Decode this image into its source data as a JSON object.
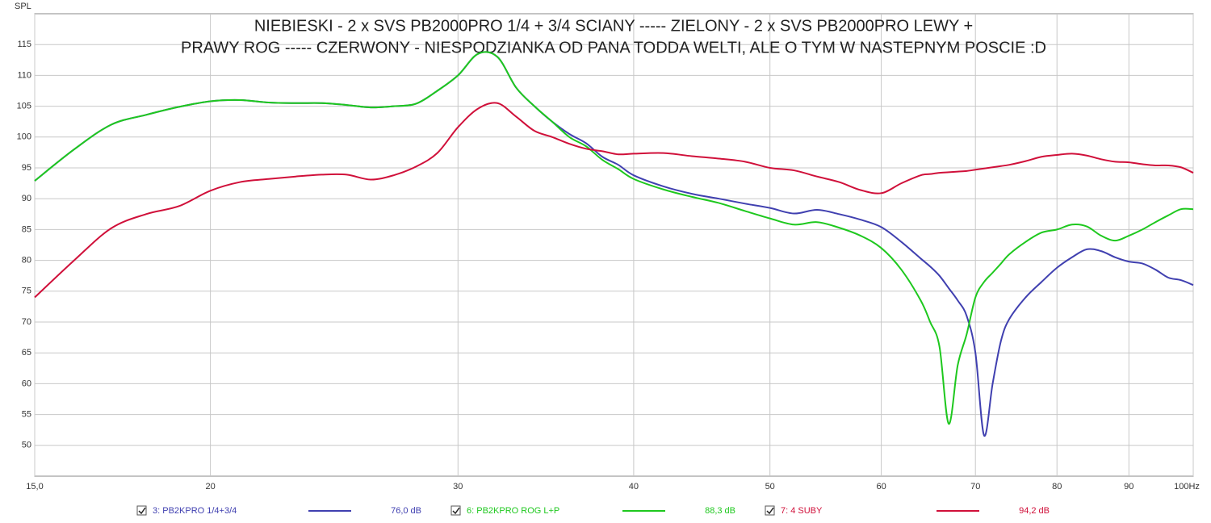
{
  "chart_data": {
    "type": "line",
    "title": [
      "NIEBIESKI - 2 x SVS PB2000PRO 1/4 + 3/4 SCIANY ----- ZIELONY - 2 x SVS PB2000PRO LEWY +",
      "PRAWY ROG ----- CZERWONY - NIESPODZIANKA OD PANA TODDA WELTI, ALE O TYM W NASTEPNYM POSCIE :D"
    ],
    "y_label": "SPL",
    "log_x": true,
    "grid": true,
    "xlim": [
      15,
      100
    ],
    "ylim": [
      45,
      120
    ],
    "xticks": [
      {
        "value": 15,
        "label": "15,0"
      },
      20,
      30,
      40,
      50,
      60,
      70,
      80,
      90,
      {
        "value": 100,
        "label": "100Hz"
      }
    ],
    "yticks": [
      50,
      55,
      60,
      65,
      70,
      75,
      80,
      85,
      90,
      95,
      100,
      105,
      110,
      115
    ],
    "x": [
      15,
      16,
      17,
      18,
      19,
      20,
      21,
      22,
      23,
      24,
      25,
      26,
      27,
      28,
      29,
      30,
      31,
      32,
      33,
      34,
      35,
      36,
      37,
      38,
      39,
      40,
      42,
      44,
      46,
      48,
      50,
      52,
      54,
      56,
      58,
      60,
      62,
      64,
      65,
      66,
      67,
      68,
      69,
      70,
      71,
      72,
      73,
      74,
      76,
      78,
      80,
      82,
      84,
      86,
      88,
      90,
      92,
      94,
      96,
      98,
      100
    ],
    "series": [
      {
        "name": "3: PB2KPRO 1/4+3/4",
        "color": "#4040b0",
        "legend_value": "76,0 dB",
        "values": [
          92.9,
          98,
          102,
          103.6,
          104.9,
          105.8,
          106,
          105.6,
          105.5,
          105.5,
          105.2,
          104.8,
          105,
          105.4,
          107.5,
          110,
          113.5,
          113,
          108,
          105,
          102.5,
          100.5,
          99,
          96.8,
          95.5,
          93.8,
          92,
          90.8,
          90,
          89.2,
          88.5,
          87.6,
          88.2,
          87.5,
          86.6,
          85.4,
          83,
          80.3,
          79,
          77.5,
          75.5,
          73.5,
          71,
          65,
          51.6,
          60,
          67,
          70.5,
          74,
          76.5,
          78.8,
          80.5,
          81.8,
          81.5,
          80.5,
          79.8,
          79.5,
          78.5,
          77.2,
          76.8,
          76
        ]
      },
      {
        "name": "6: PB2KPRO ROG L+P",
        "color": "#1ec81e",
        "legend_value": "88,3 dB",
        "values": [
          92.9,
          98,
          102,
          103.6,
          104.9,
          105.8,
          106,
          105.6,
          105.5,
          105.5,
          105.2,
          104.8,
          105,
          105.4,
          107.5,
          110,
          113.5,
          113,
          108,
          105,
          102.5,
          100,
          98.5,
          96.3,
          94.8,
          93.2,
          91.5,
          90.3,
          89.3,
          88,
          86.8,
          85.8,
          86.2,
          85.3,
          84,
          82,
          78.5,
          73.5,
          70,
          66,
          53.5,
          63,
          68,
          74,
          76.5,
          78,
          79.5,
          81,
          83,
          84.5,
          85,
          85.8,
          85.5,
          84,
          83.2,
          84,
          85,
          86.2,
          87.3,
          88.3,
          88.3
        ]
      },
      {
        "name": "7: 4 SUBY",
        "color": "#d0103a",
        "legend_value": "94,2 dB",
        "values": [
          74,
          80,
          85.2,
          87.5,
          88.8,
          91.3,
          92.7,
          93.2,
          93.6,
          93.9,
          93.9,
          93.1,
          93.8,
          95.2,
          97.4,
          101.6,
          104.6,
          105.5,
          103.3,
          101,
          100,
          98.9,
          98.1,
          97.7,
          97.2,
          97.3,
          97.4,
          96.9,
          96.5,
          96,
          95,
          94.6,
          93.6,
          92.7,
          91.4,
          90.9,
          92.5,
          93.8,
          94,
          94.2,
          94.3,
          94.4,
          94.5,
          94.7,
          94.9,
          95.1,
          95.3,
          95.5,
          96.1,
          96.8,
          97.1,
          97.3,
          97,
          96.4,
          96,
          95.9,
          95.6,
          95.4,
          95.4,
          95.1,
          94.2
        ]
      }
    ]
  }
}
